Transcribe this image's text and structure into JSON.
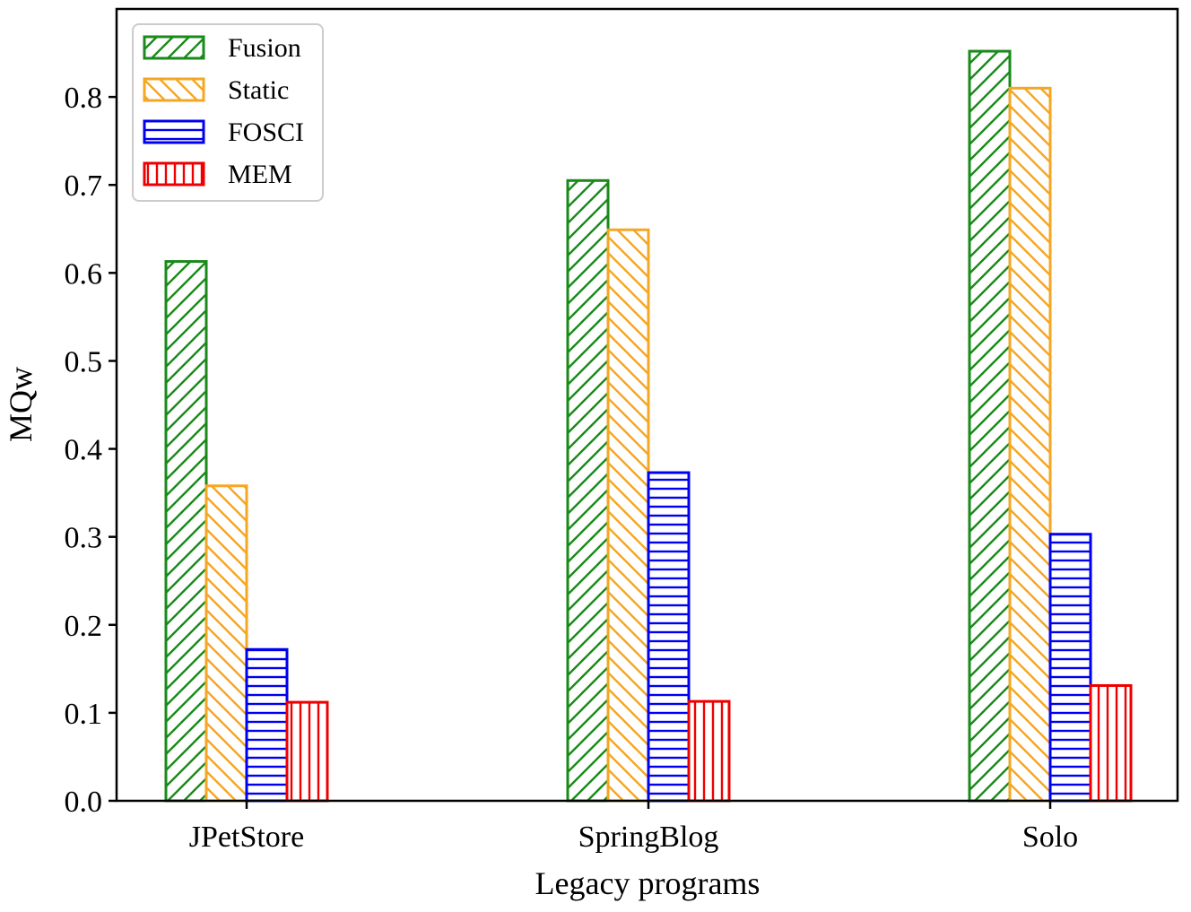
{
  "chart_data": {
    "type": "bar",
    "title": "",
    "xlabel": "Legacy programs",
    "ylabel": "MQw",
    "categories": [
      "JPetStore",
      "SpringBlog",
      "Solo"
    ],
    "series": [
      {
        "name": "Fusion",
        "color": "#1a8a1a",
        "hatch": "forward-diagonal",
        "values": [
          0.613,
          0.705,
          0.852
        ]
      },
      {
        "name": "Static",
        "color": "#f5a623",
        "hatch": "back-diagonal",
        "values": [
          0.358,
          0.649,
          0.81
        ]
      },
      {
        "name": "FOSCI",
        "color": "#0000ee",
        "hatch": "horizontal",
        "values": [
          0.172,
          0.373,
          0.303
        ]
      },
      {
        "name": "MEM",
        "color": "#ee0000",
        "hatch": "vertical",
        "values": [
          0.112,
          0.113,
          0.131
        ]
      }
    ],
    "ylim": [
      0.0,
      0.9
    ],
    "yticks": [
      "0.0",
      "0.1",
      "0.2",
      "0.3",
      "0.4",
      "0.5",
      "0.6",
      "0.7",
      "0.8"
    ],
    "grid": false,
    "legend_position": "top-left"
  }
}
